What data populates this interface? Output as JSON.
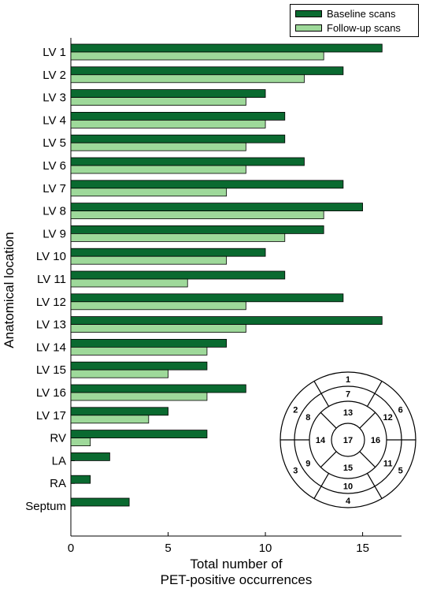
{
  "chart_data": {
    "type": "bar",
    "orientation": "horizontal",
    "categories": [
      "LV 1",
      "LV 2",
      "LV 3",
      "LV 4",
      "LV 5",
      "LV 6",
      "LV 7",
      "LV 8",
      "LV 9",
      "LV 10",
      "LV 11",
      "LV 12",
      "LV 13",
      "LV 14",
      "LV 15",
      "LV 16",
      "LV 17",
      "RV",
      "LA",
      "RA",
      "Septum"
    ],
    "series": [
      {
        "name": "Baseline scans",
        "color": "#0a6a30",
        "values": [
          16,
          14,
          10,
          11,
          11,
          12,
          14,
          15,
          13,
          10,
          11,
          14,
          16,
          8,
          7,
          9,
          5,
          7,
          2,
          1,
          3
        ]
      },
      {
        "name": "Follow-up scans",
        "color": "#9ed99a",
        "values": [
          13,
          12,
          9,
          10,
          9,
          9,
          8,
          13,
          11,
          8,
          6,
          9,
          9,
          7,
          5,
          7,
          4,
          1,
          0,
          0,
          0
        ]
      }
    ],
    "xlabel": "Total number of\nPET-positive occurrences",
    "ylabel": "Anatomical location",
    "xlim": [
      0,
      17
    ],
    "xticks": [
      0,
      5,
      10,
      15
    ],
    "grid": false,
    "legend_position": "top-right",
    "inset_segments": [
      "1",
      "2",
      "3",
      "4",
      "5",
      "6",
      "7",
      "8",
      "9",
      "10",
      "11",
      "12",
      "13",
      "14",
      "15",
      "16",
      "17"
    ]
  },
  "legend": {
    "baseline": "Baseline scans",
    "followup": "Follow-up scans"
  },
  "axes": {
    "xlabel_line1": "Total number of",
    "xlabel_line2": "PET-positive occurrences",
    "ylabel": "Anatomical location"
  }
}
